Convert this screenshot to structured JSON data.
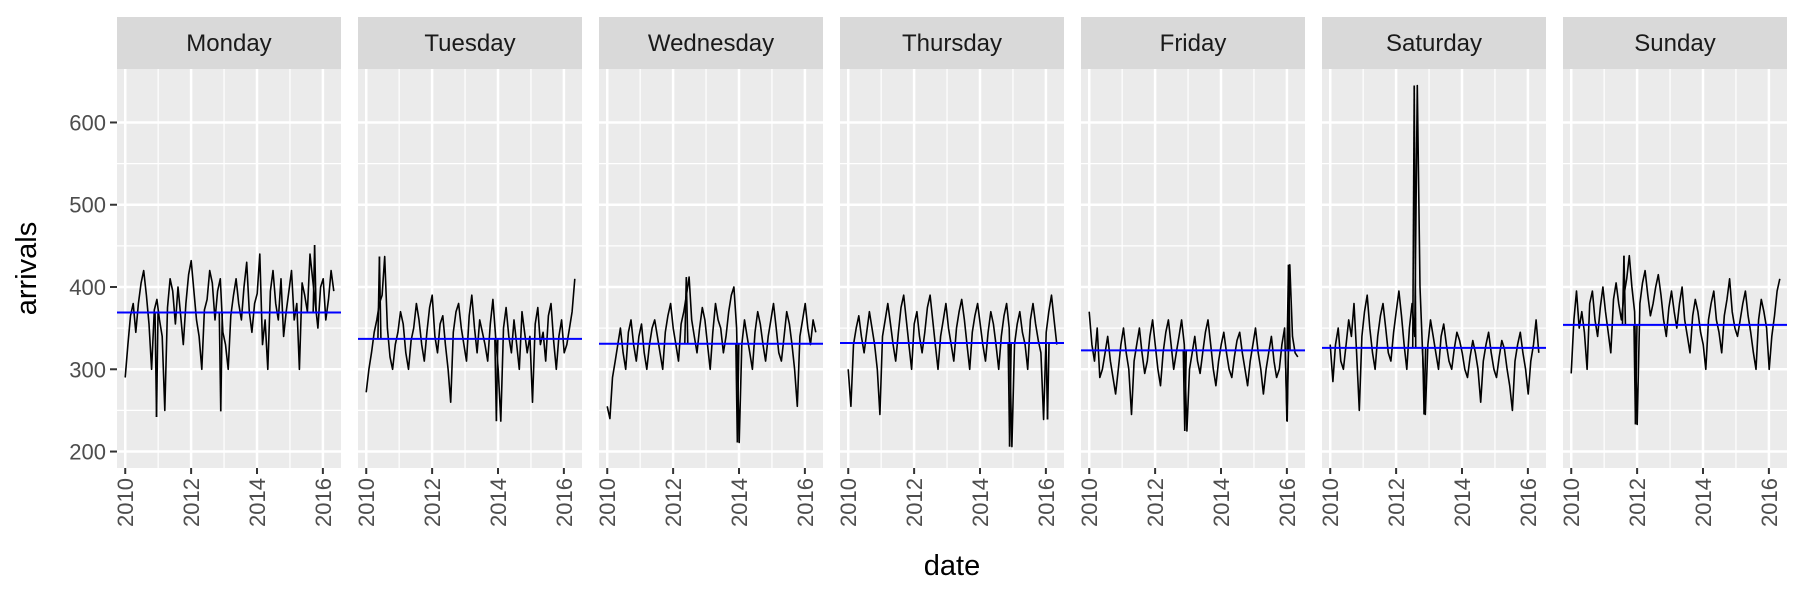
{
  "chart_data": {
    "type": "line",
    "facet_by": "weekday",
    "facets": [
      "Monday",
      "Tuesday",
      "Wednesday",
      "Thursday",
      "Friday",
      "Saturday",
      "Sunday"
    ],
    "xlabel": "date",
    "ylabel": "arrivals",
    "x_ticks": [
      "2010",
      "2012",
      "2014",
      "2016"
    ],
    "y_ticks": [
      200,
      300,
      400,
      500,
      600
    ],
    "xlim": [
      2009.75,
      2016.55
    ],
    "ylim": [
      180,
      665
    ],
    "x_time_range": [
      2010.0,
      2016.33
    ],
    "grid": true,
    "legend": "none",
    "reference_line": {
      "description": "mean arrivals per weekday",
      "color": "#0000ff"
    },
    "series_color": "#000000",
    "series": [
      {
        "name": "Monday",
        "mean": 369,
        "range": [
          242,
          451
        ],
        "spikes": [
          {
            "x": 2010.95,
            "y": 242
          },
          {
            "x": 2012.9,
            "y": 249
          },
          {
            "x": 2015.75,
            "y": 451
          }
        ],
        "values": [
          290,
          330,
          365,
          380,
          345,
          380,
          405,
          420,
          390,
          355,
          300,
          372,
          385,
          360,
          340,
          250,
          375,
          410,
          395,
          355,
          400,
          365,
          330,
          380,
          415,
          432,
          395,
          360,
          340,
          300,
          372,
          385,
          420,
          405,
          360,
          395,
          410,
          345,
          330,
          300,
          365,
          390,
          410,
          380,
          360,
          400,
          430,
          370,
          345,
          380,
          392,
          440,
          330,
          360,
          300,
          395,
          420,
          380,
          360,
          410,
          340,
          370,
          395,
          420,
          360,
          380,
          300,
          405,
          390,
          370,
          440,
          410,
          380,
          350,
          400,
          410,
          360,
          385,
          420,
          395
        ]
      },
      {
        "name": "Tuesday",
        "mean": 337,
        "range": [
          237,
          437
        ],
        "spikes": [
          {
            "x": 2010.4,
            "y": 437
          },
          {
            "x": 2013.95,
            "y": 237
          }
        ],
        "values": [
          272,
          300,
          320,
          345,
          360,
          380,
          390,
          437,
          350,
          315,
          300,
          330,
          345,
          370,
          355,
          320,
          300,
          335,
          350,
          380,
          360,
          330,
          310,
          345,
          375,
          390,
          340,
          320,
          355,
          365,
          330,
          300,
          260,
          345,
          370,
          380,
          350,
          330,
          310,
          365,
          390,
          350,
          320,
          360,
          345,
          330,
          310,
          355,
          385,
          340,
          300,
          237,
          350,
          375,
          340,
          320,
          360,
          330,
          300,
          370,
          345,
          320,
          340,
          260,
          355,
          375,
          330,
          345,
          310,
          365,
          380,
          335,
          300,
          340,
          360,
          320,
          330,
          350,
          370,
          410
        ]
      },
      {
        "name": "Wednesday",
        "mean": 331,
        "range": [
          211,
          412
        ],
        "spikes": [
          {
            "x": 2012.4,
            "y": 412
          },
          {
            "x": 2013.95,
            "y": 211
          }
        ],
        "values": [
          255,
          240,
          290,
          310,
          330,
          350,
          320,
          300,
          345,
          360,
          330,
          310,
          340,
          355,
          320,
          300,
          330,
          350,
          360,
          340,
          320,
          300,
          345,
          365,
          380,
          350,
          330,
          310,
          355,
          370,
          390,
          412,
          360,
          340,
          320,
          350,
          375,
          360,
          330,
          300,
          345,
          380,
          360,
          350,
          320,
          340,
          370,
          390,
          400,
          350,
          211,
          330,
          360,
          340,
          320,
          300,
          345,
          370,
          355,
          330,
          310,
          340,
          360,
          380,
          350,
          320,
          310,
          340,
          370,
          355,
          330,
          300,
          255,
          340,
          360,
          380,
          350,
          330,
          360,
          345
        ]
      },
      {
        "name": "Thursday",
        "mean": 332,
        "range": [
          206,
          393
        ],
        "spikes": [
          {
            "x": 2014.9,
            "y": 206
          },
          {
            "x": 2016.05,
            "y": 239
          }
        ],
        "values": [
          300,
          255,
          330,
          350,
          365,
          340,
          320,
          345,
          370,
          350,
          330,
          300,
          245,
          340,
          360,
          380,
          355,
          330,
          310,
          345,
          375,
          390,
          360,
          330,
          300,
          355,
          370,
          340,
          320,
          345,
          375,
          390,
          360,
          330,
          300,
          340,
          360,
          380,
          350,
          330,
          310,
          350,
          370,
          385,
          360,
          330,
          300,
          345,
          365,
          380,
          355,
          330,
          310,
          345,
          370,
          355,
          330,
          300,
          340,
          365,
          380,
          350,
          206,
          330,
          355,
          370,
          345,
          330,
          300,
          360,
          380,
          355,
          335,
          320,
          239,
          345,
          370,
          390,
          360,
          330
        ]
      },
      {
        "name": "Friday",
        "mean": 323,
        "range": [
          225,
          427
        ],
        "spikes": [
          {
            "x": 2012.9,
            "y": 225
          },
          {
            "x": 2016.0,
            "y": 237
          },
          {
            "x": 2016.05,
            "y": 427
          }
        ],
        "values": [
          370,
          330,
          310,
          350,
          290,
          300,
          320,
          340,
          310,
          290,
          270,
          300,
          330,
          350,
          320,
          300,
          245,
          310,
          330,
          350,
          320,
          295,
          310,
          340,
          360,
          330,
          300,
          280,
          320,
          345,
          360,
          330,
          300,
          320,
          340,
          360,
          330,
          225,
          300,
          320,
          340,
          310,
          295,
          320,
          345,
          360,
          330,
          300,
          280,
          310,
          330,
          345,
          320,
          300,
          290,
          315,
          335,
          345,
          320,
          300,
          280,
          310,
          330,
          350,
          320,
          300,
          270,
          300,
          320,
          340,
          310,
          290,
          300,
          330,
          350,
          237,
          427,
          340,
          320,
          315
        ]
      },
      {
        "name": "Saturday",
        "mean": 326,
        "range": [
          245,
          645
        ],
        "spikes": [
          {
            "x": 2012.55,
            "y": 645
          },
          {
            "x": 2012.85,
            "y": 245
          }
        ],
        "values": [
          330,
          285,
          330,
          350,
          310,
          300,
          330,
          360,
          340,
          380,
          320,
          250,
          340,
          370,
          390,
          350,
          320,
          300,
          340,
          365,
          380,
          350,
          320,
          310,
          345,
          370,
          395,
          365,
          330,
          300,
          350,
          380,
          340,
          645,
          400,
          320,
          245,
          330,
          360,
          340,
          320,
          300,
          340,
          355,
          330,
          310,
          300,
          325,
          345,
          335,
          320,
          300,
          290,
          315,
          335,
          320,
          300,
          260,
          310,
          330,
          345,
          320,
          300,
          290,
          315,
          335,
          325,
          300,
          280,
          250,
          310,
          330,
          345,
          320,
          300,
          270,
          310,
          330,
          360,
          320
        ]
      },
      {
        "name": "Sunday",
        "mean": 354,
        "range": [
          233,
          438
        ],
        "spikes": [
          {
            "x": 2011.95,
            "y": 233
          },
          {
            "x": 2011.6,
            "y": 438
          }
        ],
        "values": [
          295,
          360,
          395,
          350,
          370,
          345,
          300,
          380,
          395,
          360,
          340,
          375,
          400,
          370,
          345,
          320,
          385,
          405,
          380,
          360,
          390,
          410,
          438,
          400,
          370,
          233,
          380,
          405,
          420,
          390,
          365,
          380,
          400,
          415,
          390,
          360,
          340,
          375,
          395,
          370,
          350,
          380,
          400,
          360,
          340,
          320,
          365,
          385,
          370,
          345,
          330,
          300,
          360,
          380,
          395,
          360,
          345,
          320,
          365,
          385,
          410,
          370,
          350,
          340,
          360,
          380,
          395,
          365,
          345,
          320,
          300,
          360,
          385,
          370,
          350,
          300,
          340,
          365,
          395,
          410
        ]
      }
    ]
  }
}
